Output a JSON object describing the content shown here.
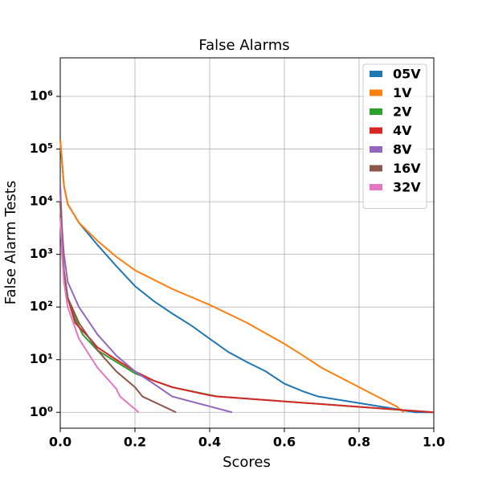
{
  "chart_data": {
    "type": "line",
    "title": "False Alarms",
    "x_label": "Scores",
    "y_label": "False Alarm Tests",
    "xlim": [
      0,
      1
    ],
    "ylim": [
      0.5,
      5400000
    ],
    "log_y": true,
    "grid": true,
    "legend_position": "upper-right",
    "xticks": [
      {
        "value": 0,
        "label": "0.0"
      },
      0.2,
      0.4,
      0.6,
      0.8,
      {
        "value": 1,
        "label": "1.0"
      }
    ],
    "yticks": [
      {
        "value": 1,
        "label": "10⁰"
      },
      {
        "value": 10,
        "label": "10¹"
      },
      {
        "value": 100,
        "label": "10²"
      },
      {
        "value": 1000,
        "label": "10³"
      },
      {
        "value": 10000,
        "label": "10⁴"
      },
      {
        "value": 100000,
        "label": "10⁵"
      },
      {
        "value": 1000000,
        "label": "10⁶"
      }
    ],
    "series": [
      {
        "name": "05V",
        "color": "#1f77b4",
        "x": [
          0,
          0.01,
          0.02,
          0.05,
          0.1,
          0.15,
          0.2,
          0.25,
          0.3,
          0.35,
          0.4,
          0.45,
          0.5,
          0.55,
          0.6,
          0.65,
          0.69,
          0.8,
          0.9,
          0.95,
          1.0
        ],
        "values": [
          150000,
          20000,
          9000,
          4000,
          1500,
          600,
          250,
          130,
          75,
          45,
          25,
          14,
          9,
          6,
          3.5,
          2.5,
          2,
          1.5,
          1.15,
          1,
          1
        ]
      },
      {
        "name": "1V",
        "color": "#ff7f0e",
        "x": [
          0,
          0.01,
          0.02,
          0.05,
          0.1,
          0.15,
          0.2,
          0.3,
          0.4,
          0.5,
          0.6,
          0.65,
          0.7,
          0.8,
          0.9,
          0.92
        ],
        "values": [
          150000,
          20000,
          9000,
          4000,
          1800,
          900,
          500,
          220,
          110,
          50,
          20,
          12,
          7,
          3,
          1.3,
          1
        ]
      },
      {
        "name": "2V",
        "color": "#2ca02c",
        "x": [
          0,
          0.005,
          0.01,
          0.02,
          0.04,
          0.06,
          0.1,
          0.2,
          0.25,
          0.3,
          0.42,
          1.0
        ],
        "values": [
          20000,
          1000,
          400,
          150,
          60,
          30,
          15,
          5.5,
          4,
          3,
          2,
          1
        ]
      },
      {
        "name": "4V",
        "color": "#d62728",
        "x": [
          0,
          0.005,
          0.01,
          0.02,
          0.04,
          0.06,
          0.08,
          0.1,
          0.15,
          0.2,
          0.25,
          0.3,
          0.4,
          0.42,
          1.0
        ],
        "values": [
          20000,
          1000,
          400,
          150,
          50,
          35,
          25,
          17,
          10,
          6,
          4,
          3,
          2.1,
          2,
          1
        ]
      },
      {
        "name": "8V",
        "color": "#9467bd",
        "x": [
          0,
          0.005,
          0.01,
          0.02,
          0.05,
          0.1,
          0.15,
          0.2,
          0.25,
          0.3,
          0.46
        ],
        "values": [
          20000,
          3000,
          1000,
          300,
          100,
          30,
          12,
          6,
          3.5,
          2,
          1
        ]
      },
      {
        "name": "16V",
        "color": "#8c564b",
        "x": [
          0,
          0.005,
          0.01,
          0.02,
          0.05,
          0.1,
          0.15,
          0.2,
          0.22,
          0.31
        ],
        "values": [
          10000,
          1500,
          500,
          150,
          50,
          15,
          6,
          3,
          2,
          1
        ]
      },
      {
        "name": "32V",
        "color": "#e377c2",
        "x": [
          0,
          0.005,
          0.01,
          0.02,
          0.05,
          0.1,
          0.15,
          0.16,
          0.21
        ],
        "values": [
          5000,
          1000,
          300,
          100,
          25,
          7,
          2.8,
          2,
          1
        ]
      }
    ]
  }
}
